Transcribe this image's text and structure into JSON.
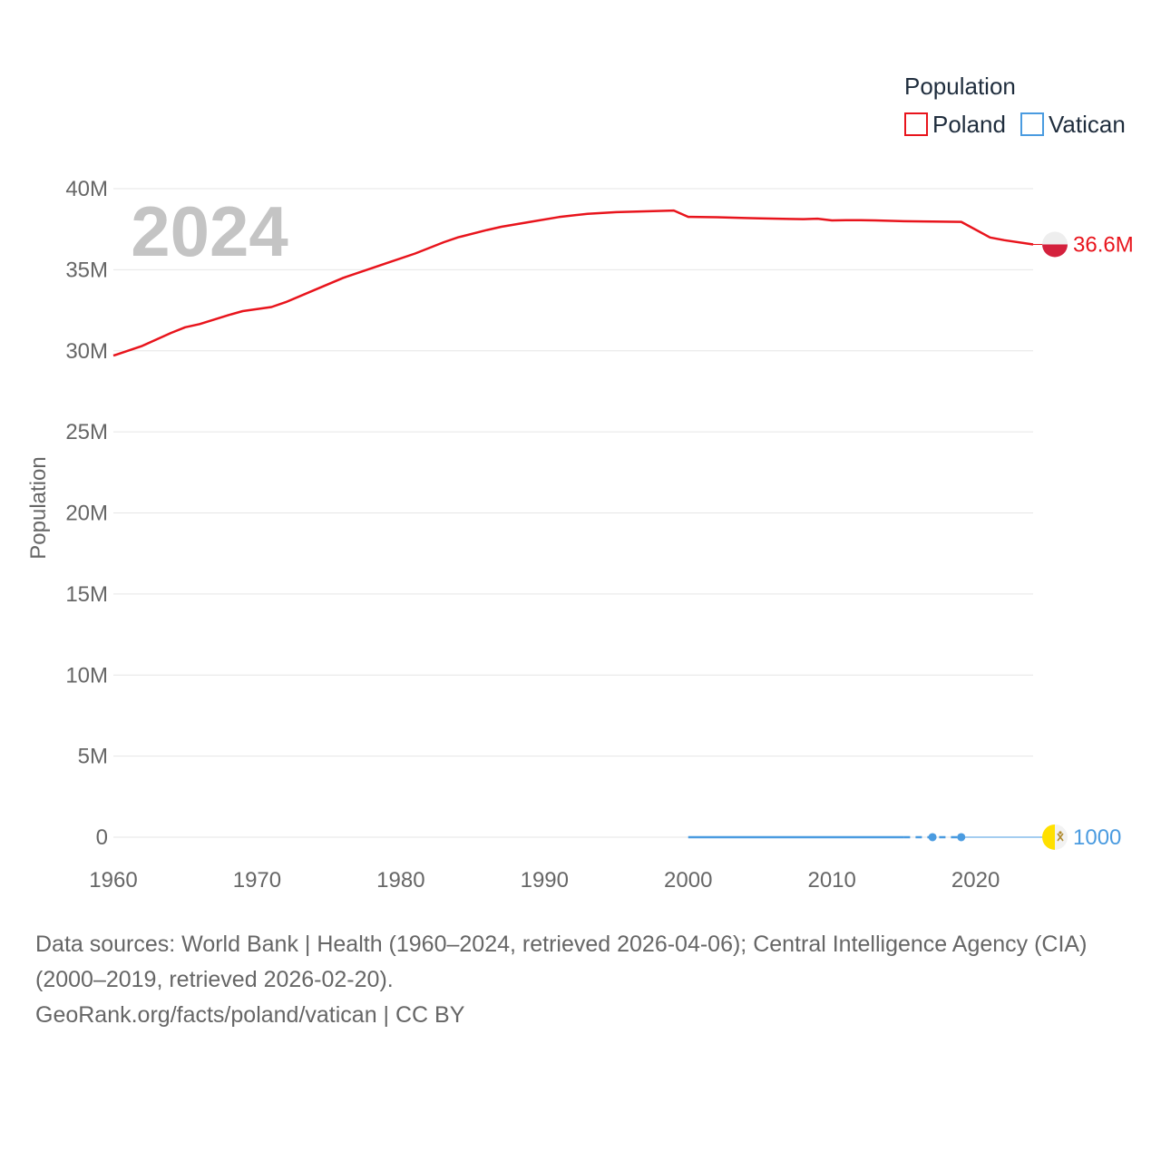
{
  "chart_data": {
    "type": "line",
    "legend_title": "Population",
    "year_label": "2024",
    "ylabel": "Population",
    "xlim": [
      1960,
      2024
    ],
    "ylim": [
      0,
      40000000
    ],
    "x_ticks": [
      1960,
      1970,
      1980,
      1990,
      2000,
      2010,
      2020
    ],
    "x_tick_labels": [
      "1960",
      "1970",
      "1980",
      "1990",
      "2000",
      "2010",
      "2020"
    ],
    "y_ticks": [
      0,
      5000000,
      10000000,
      15000000,
      20000000,
      25000000,
      30000000,
      35000000,
      40000000
    ],
    "y_tick_labels": [
      "0",
      "5M",
      "10M",
      "15M",
      "20M",
      "25M",
      "30M",
      "35M",
      "40M"
    ],
    "grid": true,
    "legend_position": "top-right",
    "series": [
      {
        "name": "Poland",
        "color": "#e8141c",
        "end_label": "36.6M",
        "flag": "poland-flag",
        "x": [
          1960,
          1962,
          1964,
          1965,
          1966,
          1968,
          1969,
          1971,
          1972,
          1974,
          1976,
          1978,
          1979,
          1981,
          1983,
          1984,
          1986,
          1987,
          1989,
          1991,
          1993,
          1995,
          1997,
          1999,
          2000,
          2002,
          2004,
          2005,
          2007,
          2008,
          2009,
          2010,
          2011,
          2012,
          2013,
          2015,
          2017,
          2019,
          2021,
          2022,
          2024
        ],
        "values": [
          29700000,
          30300000,
          31100000,
          31450000,
          31650000,
          32200000,
          32450000,
          32700000,
          33000000,
          33750000,
          34500000,
          35100000,
          35400000,
          36000000,
          36700000,
          37000000,
          37450000,
          37650000,
          37950000,
          38250000,
          38450000,
          38550000,
          38600000,
          38650000,
          38260000,
          38240000,
          38190000,
          38170000,
          38130000,
          38120000,
          38150000,
          38040000,
          38060000,
          38060000,
          38040000,
          37990000,
          37970000,
          37950000,
          36990000,
          36820000,
          36560000
        ]
      },
      {
        "name": "Vatican",
        "color": "#4a9be0",
        "end_label": "1000",
        "flag": "vatican-flag",
        "x": [
          2000,
          2015,
          2017,
          2019
        ],
        "values": [
          880,
          840,
          1000,
          1000
        ]
      }
    ]
  },
  "footer": {
    "sources_line1": "Data sources: World Bank | Health (1960–2024, retrieved 2026-04-06); Central Intelligence Agency (CIA)",
    "sources_line2": "(2000–2019, retrieved 2026-02-20).",
    "attribution": "GeoRank.org/facts/poland/vatican | CC BY"
  }
}
